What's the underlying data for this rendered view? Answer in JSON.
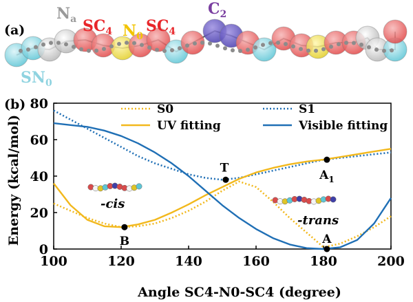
{
  "panel_a": {
    "label": "(a)",
    "bead_labels": {
      "na_main": "N",
      "na_sub": "a",
      "sc4_left_main": "SC",
      "sc4_left_sub": "4",
      "n0_main": "N",
      "n0_sub": "0",
      "sc4_right_main": "SC",
      "sc4_right_sub": "4",
      "c2_main": "C",
      "c2_sub": "2",
      "sn0_main": "SN",
      "sn0_sub": "0"
    },
    "colors": {
      "na": "#9a9a9a",
      "sc4": "#e8262a",
      "n0": "#f2c400",
      "c2": "#7a3fa0",
      "sn0": "#8fd3e0"
    }
  },
  "panel_b": {
    "label": "(b)",
    "annotations": {
      "B": "B",
      "T": "T",
      "A": "A",
      "A1_main": "A",
      "A1_sub": "1",
      "cis": "-cis",
      "trans": "-trans"
    }
  },
  "chart_data": {
    "type": "line",
    "title": "",
    "xlabel": "Angle SC4-N0-SC4 (degree)",
    "ylabel": "Energy (kcal/mol)",
    "xlim": [
      100,
      200
    ],
    "ylim": [
      0,
      80
    ],
    "xticks": [
      100,
      120,
      140,
      160,
      180,
      200
    ],
    "yticks": [
      0,
      20,
      40,
      60,
      80
    ],
    "grid": false,
    "legend_placement": "top",
    "series": [
      {
        "name": "S0",
        "style": "dotted",
        "color": "#f2b81c",
        "x": [
          100,
          105,
          110,
          115,
          120,
          125,
          130,
          135,
          140,
          145,
          150,
          155,
          160,
          165,
          170,
          175,
          180,
          185,
          190,
          195,
          200
        ],
        "y": [
          25,
          21,
          17,
          14,
          12,
          12.5,
          14,
          17,
          21,
          26,
          32,
          37,
          34,
          26,
          17,
          9,
          1,
          3,
          7,
          12,
          18
        ]
      },
      {
        "name": "S1",
        "style": "dotted",
        "color": "#1f6fb5",
        "x": [
          100,
          105,
          110,
          115,
          120,
          125,
          130,
          135,
          140,
          145,
          150,
          155,
          160,
          165,
          170,
          175,
          180,
          185,
          190,
          195,
          200
        ],
        "y": [
          76,
          71,
          66,
          61,
          56,
          51,
          47,
          44,
          41,
          39,
          38,
          39,
          41,
          43,
          45,
          47,
          49,
          50,
          51,
          52,
          53
        ]
      },
      {
        "name": "UV fitting",
        "style": "solid",
        "color": "#f2b81c",
        "x": [
          100,
          105,
          110,
          115,
          120,
          125,
          130,
          135,
          140,
          145,
          150,
          155,
          160,
          165,
          170,
          175,
          180,
          185,
          190,
          195,
          200
        ],
        "y": [
          36,
          24,
          16,
          12.5,
          12,
          13.5,
          16,
          20,
          24.5,
          29.5,
          34,
          38.5,
          42,
          44.5,
          46.5,
          48,
          49,
          50.5,
          52,
          53.5,
          55
        ]
      },
      {
        "name": "Visible fitting",
        "style": "solid",
        "color": "#1f6fb5",
        "x": [
          100,
          105,
          110,
          115,
          120,
          125,
          130,
          135,
          140,
          145,
          150,
          155,
          160,
          165,
          170,
          175,
          180,
          185,
          190,
          195,
          200
        ],
        "y": [
          69,
          68,
          67,
          65,
          62,
          58,
          53,
          47,
          40,
          32,
          24,
          17,
          11,
          6,
          2.5,
          0.5,
          0,
          1,
          5,
          14,
          28
        ]
      }
    ],
    "points": [
      {
        "label": "B",
        "x": 121,
        "y": 12
      },
      {
        "label": "T",
        "x": 151,
        "y": 38
      },
      {
        "label": "A",
        "x": 181,
        "y": 0
      },
      {
        "label": "A1",
        "x": 181,
        "y": 49
      }
    ]
  }
}
